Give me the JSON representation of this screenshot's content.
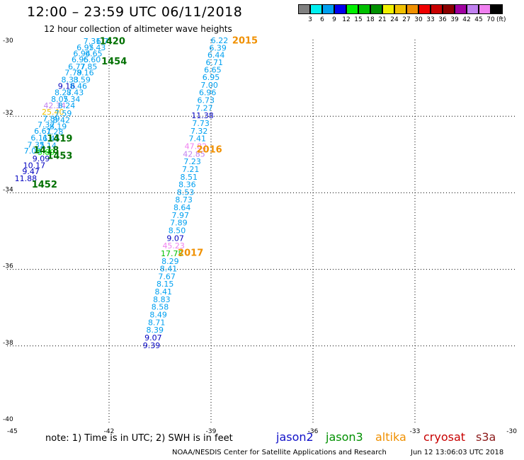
{
  "header": {
    "title": "12:00 – 23:59 UTC 06/11/2018",
    "subtitle": "12 hour collection of altimeter wave heights"
  },
  "footer": {
    "note": "note:  1) Time is in UTC;  2) SWH is in feet",
    "credit": "NOAA/NESDIS Center for Satellite Applications and Research",
    "generated": "Jun 12 13:06:03 UTC 2018"
  },
  "satellites": [
    {
      "name": "jason2",
      "color": "#1010c8"
    },
    {
      "name": "jason3",
      "color": "#009000"
    },
    {
      "name": "altika",
      "color": "#f09000"
    },
    {
      "name": "cryosat",
      "color": "#c80000"
    },
    {
      "name": "s3a",
      "color": "#8b1a1a"
    }
  ],
  "colorbar": {
    "unit": "(ft)",
    "colors": [
      "#808080",
      "#00f0f0",
      "#00a0f0",
      "#0000f0",
      "#00f000",
      "#00c000",
      "#009000",
      "#f0f000",
      "#f0c000",
      "#f09000",
      "#f00000",
      "#c80000",
      "#8b0000",
      "#a000a0",
      "#c080f0",
      "#f080f0",
      "#000000"
    ],
    "labels": [
      "3",
      "6",
      "9",
      "12",
      "15",
      "18",
      "21",
      "24",
      "27",
      "30",
      "33",
      "36",
      "39",
      "42",
      "45",
      "70"
    ]
  },
  "chart_data": {
    "type": "scatter",
    "title": "12:00 – 23:59 UTC 06/11/2018",
    "subtitle": "12 hour collection of altimeter wave heights",
    "xlim": [
      -45,
      -30
    ],
    "ylim": [
      -40,
      -30
    ],
    "x_ticks": [
      -45,
      -42,
      -39,
      -36,
      -33,
      -30
    ],
    "y_ticks": [
      -30,
      -32,
      -34,
      -36,
      -38,
      -40
    ],
    "grid": true,
    "points": [
      {
        "x": -42.5,
        "y": -30.06,
        "label": "7.31",
        "color": "#00a0f0"
      },
      {
        "x": -42.2,
        "y": -30.06,
        "label": "6.7",
        "color": "#00a0f0"
      },
      {
        "x": -42.7,
        "y": -30.22,
        "label": "6.95",
        "color": "#00a0f0"
      },
      {
        "x": -42.35,
        "y": -30.22,
        "label": "7.43",
        "color": "#00a0f0"
      },
      {
        "x": -42.8,
        "y": -30.38,
        "label": "6.94",
        "color": "#00a0f0"
      },
      {
        "x": -42.45,
        "y": -30.38,
        "label": "6.65",
        "color": "#00a0f0"
      },
      {
        "x": -42.85,
        "y": -30.54,
        "label": "6.95",
        "color": "#00a0f0"
      },
      {
        "x": -42.5,
        "y": -30.54,
        "label": "6.60",
        "color": "#00a0f0"
      },
      {
        "x": -42.95,
        "y": -30.72,
        "label": "6.77",
        "color": "#00a0f0"
      },
      {
        "x": -42.6,
        "y": -30.72,
        "label": "7.85",
        "color": "#00a0f0"
      },
      {
        "x": -43.05,
        "y": -30.88,
        "label": "7.79",
        "color": "#00a0f0"
      },
      {
        "x": -42.7,
        "y": -30.88,
        "label": "8.16",
        "color": "#00a0f0"
      },
      {
        "x": -43.15,
        "y": -31.06,
        "label": "8.33",
        "color": "#00a0f0"
      },
      {
        "x": -42.8,
        "y": -31.06,
        "label": "8.59",
        "color": "#00a0f0"
      },
      {
        "x": -43.25,
        "y": -31.23,
        "label": "9.16",
        "color": "#0000c0"
      },
      {
        "x": -42.9,
        "y": -31.23,
        "label": "8.46",
        "color": "#00a0f0"
      },
      {
        "x": -43.35,
        "y": -31.4,
        "label": "8.27",
        "color": "#00a0f0"
      },
      {
        "x": -43.0,
        "y": -31.4,
        "label": "8.43",
        "color": "#00a0f0"
      },
      {
        "x": -43.45,
        "y": -31.57,
        "label": "8.05",
        "color": "#00a0f0"
      },
      {
        "x": -43.1,
        "y": -31.57,
        "label": "7.34",
        "color": "#00a0f0"
      },
      {
        "x": -43.6,
        "y": -31.74,
        "label": "42.34",
        "color": "#c080f0"
      },
      {
        "x": -43.25,
        "y": -31.74,
        "label": "8.24",
        "color": "#00a0f0"
      },
      {
        "x": -43.65,
        "y": -31.9,
        "label": "25.40",
        "color": "#f0c000"
      },
      {
        "x": -43.35,
        "y": -31.94,
        "label": "7.59",
        "color": "#00a0f0"
      },
      {
        "x": -43.7,
        "y": -32.08,
        "label": "7.89",
        "color": "#00a0f0"
      },
      {
        "x": -43.4,
        "y": -32.12,
        "label": "8.42",
        "color": "#00a0f0"
      },
      {
        "x": -43.85,
        "y": -32.24,
        "label": "7.32",
        "color": "#00a0f0"
      },
      {
        "x": -43.5,
        "y": -32.28,
        "label": "8.19",
        "color": "#00a0f0"
      },
      {
        "x": -43.95,
        "y": -32.4,
        "label": "6.61",
        "color": "#00a0f0"
      },
      {
        "x": -43.6,
        "y": -32.42,
        "label": "7.28",
        "color": "#00a0f0"
      },
      {
        "x": -44.05,
        "y": -32.58,
        "label": "6.11",
        "color": "#00a0f0"
      },
      {
        "x": -43.7,
        "y": -32.6,
        "label": "6.45",
        "color": "#00a0f0"
      },
      {
        "x": -44.15,
        "y": -32.76,
        "label": "7.35",
        "color": "#00a0f0"
      },
      {
        "x": -43.8,
        "y": -32.78,
        "label": "7.14",
        "color": "#00a0f0"
      },
      {
        "x": -44.25,
        "y": -32.92,
        "label": "7.08",
        "color": "#00a0f0"
      },
      {
        "x": -43.85,
        "y": -32.96,
        "label": "5.89",
        "color": "#00f000"
      },
      {
        "x": -44.0,
        "y": -33.12,
        "label": "9.09",
        "color": "#0000c0"
      },
      {
        "x": -44.2,
        "y": -33.3,
        "label": "10.17",
        "color": "#0000c0"
      },
      {
        "x": -44.3,
        "y": -33.46,
        "label": "9.47",
        "color": "#0000c0"
      },
      {
        "x": -44.45,
        "y": -33.64,
        "label": "11.88",
        "color": "#0000c0"
      },
      {
        "x": -38.75,
        "y": -30.04,
        "label": "6.22",
        "color": "#00a0f0"
      },
      {
        "x": -38.8,
        "y": -30.23,
        "label": "6.39",
        "color": "#00a0f0"
      },
      {
        "x": -38.85,
        "y": -30.42,
        "label": "6.44",
        "color": "#00a0f0"
      },
      {
        "x": -38.9,
        "y": -30.61,
        "label": "6.71",
        "color": "#00a0f0"
      },
      {
        "x": -38.95,
        "y": -30.8,
        "label": "6.65",
        "color": "#00a0f0"
      },
      {
        "x": -39.0,
        "y": -31.0,
        "label": "6.95",
        "color": "#00a0f0"
      },
      {
        "x": -39.05,
        "y": -31.2,
        "label": "7.00",
        "color": "#00a0f0"
      },
      {
        "x": -39.1,
        "y": -31.4,
        "label": "6.96",
        "color": "#00a0f0"
      },
      {
        "x": -39.15,
        "y": -31.6,
        "label": "6.73",
        "color": "#00a0f0"
      },
      {
        "x": -39.2,
        "y": -31.8,
        "label": "7.27",
        "color": "#00a0f0"
      },
      {
        "x": -39.25,
        "y": -32.0,
        "label": "11.38",
        "color": "#0000c0"
      },
      {
        "x": -39.3,
        "y": -32.2,
        "label": "7.73",
        "color": "#00a0f0"
      },
      {
        "x": -39.35,
        "y": -32.4,
        "label": "7.32",
        "color": "#00a0f0"
      },
      {
        "x": -39.4,
        "y": -32.6,
        "label": "7.41",
        "color": "#00a0f0"
      },
      {
        "x": -39.45,
        "y": -32.8,
        "label": "47.82",
        "color": "#f080f0"
      },
      {
        "x": -39.5,
        "y": -33.0,
        "label": "42.85",
        "color": "#c080f0"
      },
      {
        "x": -39.55,
        "y": -33.2,
        "label": "7.23",
        "color": "#00a0f0"
      },
      {
        "x": -39.6,
        "y": -33.4,
        "label": "7.21",
        "color": "#00a0f0"
      },
      {
        "x": -39.65,
        "y": -33.6,
        "label": "8.51",
        "color": "#00a0f0"
      },
      {
        "x": -39.7,
        "y": -33.8,
        "label": "8.36",
        "color": "#00a0f0"
      },
      {
        "x": -39.75,
        "y": -34.0,
        "label": "8.53",
        "color": "#00a0f0"
      },
      {
        "x": -39.8,
        "y": -34.2,
        "label": "8.73",
        "color": "#00a0f0"
      },
      {
        "x": -39.85,
        "y": -34.4,
        "label": "8.64",
        "color": "#00a0f0"
      },
      {
        "x": -39.9,
        "y": -34.6,
        "label": "7.97",
        "color": "#00a0f0"
      },
      {
        "x": -39.95,
        "y": -34.8,
        "label": "7.89",
        "color": "#00a0f0"
      },
      {
        "x": -40.0,
        "y": -35.0,
        "label": "8.50",
        "color": "#00a0f0"
      },
      {
        "x": -40.05,
        "y": -35.2,
        "label": "9.07",
        "color": "#0000c0"
      },
      {
        "x": -40.1,
        "y": -35.4,
        "label": "45.23",
        "color": "#f080f0"
      },
      {
        "x": -40.15,
        "y": -35.6,
        "label": "17.78",
        "color": "#00c000"
      },
      {
        "x": -40.2,
        "y": -35.8,
        "label": "8.29",
        "color": "#00a0f0"
      },
      {
        "x": -40.25,
        "y": -36.0,
        "label": "8.41",
        "color": "#00a0f0"
      },
      {
        "x": -40.3,
        "y": -36.2,
        "label": "7.67",
        "color": "#00a0f0"
      },
      {
        "x": -40.35,
        "y": -36.4,
        "label": "8.15",
        "color": "#00a0f0"
      },
      {
        "x": -40.4,
        "y": -36.6,
        "label": "8.41",
        "color": "#00a0f0"
      },
      {
        "x": -40.45,
        "y": -36.8,
        "label": "8.83",
        "color": "#00a0f0"
      },
      {
        "x": -40.5,
        "y": -37.0,
        "label": "8.58",
        "color": "#00a0f0"
      },
      {
        "x": -40.55,
        "y": -37.2,
        "label": "8.49",
        "color": "#00a0f0"
      },
      {
        "x": -40.6,
        "y": -37.4,
        "label": "8.71",
        "color": "#00a0f0"
      },
      {
        "x": -40.65,
        "y": -37.6,
        "label": "8.39",
        "color": "#00a0f0"
      },
      {
        "x": -40.7,
        "y": -37.8,
        "label": "9.07",
        "color": "#0000c0"
      },
      {
        "x": -40.75,
        "y": -38.0,
        "label": "9.39",
        "color": "#0000c0"
      }
    ],
    "annotations": [
      {
        "x": -41.9,
        "y": -30.06,
        "label": "1420",
        "color": "#007000"
      },
      {
        "x": -41.85,
        "y": -30.58,
        "label": "1454",
        "color": "#007000"
      },
      {
        "x": -43.45,
        "y": -32.6,
        "label": "1419",
        "color": "#007000"
      },
      {
        "x": -43.85,
        "y": -32.9,
        "label": "1418",
        "color": "#007000"
      },
      {
        "x": -43.45,
        "y": -33.05,
        "label": "1453",
        "color": "#007000"
      },
      {
        "x": -43.9,
        "y": -33.8,
        "label": "1452",
        "color": "#007000"
      },
      {
        "x": -38.0,
        "y": -30.04,
        "label": "2015",
        "color": "#f09000"
      },
      {
        "x": -39.05,
        "y": -32.88,
        "label": "2016",
        "color": "#f09000"
      },
      {
        "x": -39.6,
        "y": -35.58,
        "label": "2017",
        "color": "#f09000"
      }
    ]
  }
}
